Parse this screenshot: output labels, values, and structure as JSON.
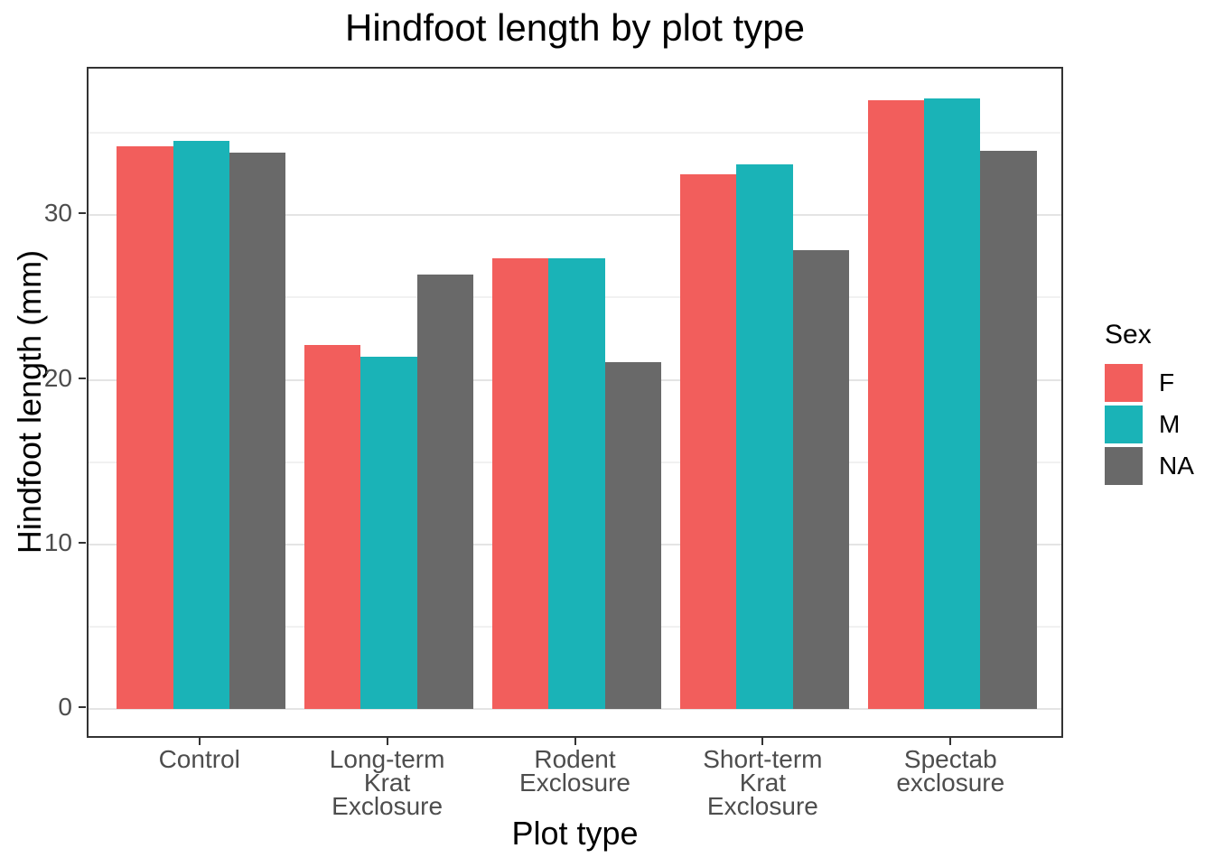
{
  "figure": {
    "background": "#FFFFFF",
    "panel_border_color": "#333333",
    "grid_major_color": "#E4E4E4",
    "grid_minor_color": "#F1F1F1",
    "axis_text_color": "#4D4D4D",
    "tick_mark_color": "#333333",
    "title_color": "#000000"
  },
  "chart_data": {
    "type": "bar",
    "title": "Hindfoot length by plot type",
    "xlabel": "Plot type",
    "ylabel": "Hindfoot length (mm)",
    "legend_title": "Sex",
    "legend_position": "right",
    "grid": true,
    "categories": [
      "Control",
      "Long-term\nKrat\nExclosure",
      "Rodent\nExclosure",
      "Short-term\nKrat\nExclosure",
      "Spectab\nexclosure"
    ],
    "series": [
      {
        "name": "F",
        "color": "#F25E5C",
        "values": [
          34.2,
          22.1,
          27.4,
          32.5,
          37.0
        ]
      },
      {
        "name": "M",
        "color": "#1AB3B7",
        "values": [
          34.5,
          21.4,
          27.4,
          33.1,
          37.1
        ]
      },
      {
        "name": "NA",
        "color": "#696969",
        "values": [
          33.8,
          26.4,
          21.1,
          27.9,
          33.9
        ]
      }
    ],
    "y_ticks": [
      0,
      10,
      20,
      30
    ],
    "y_minor_ticks": [
      5,
      15,
      25,
      35
    ],
    "ylim": [
      -1.85,
      38.9
    ]
  }
}
